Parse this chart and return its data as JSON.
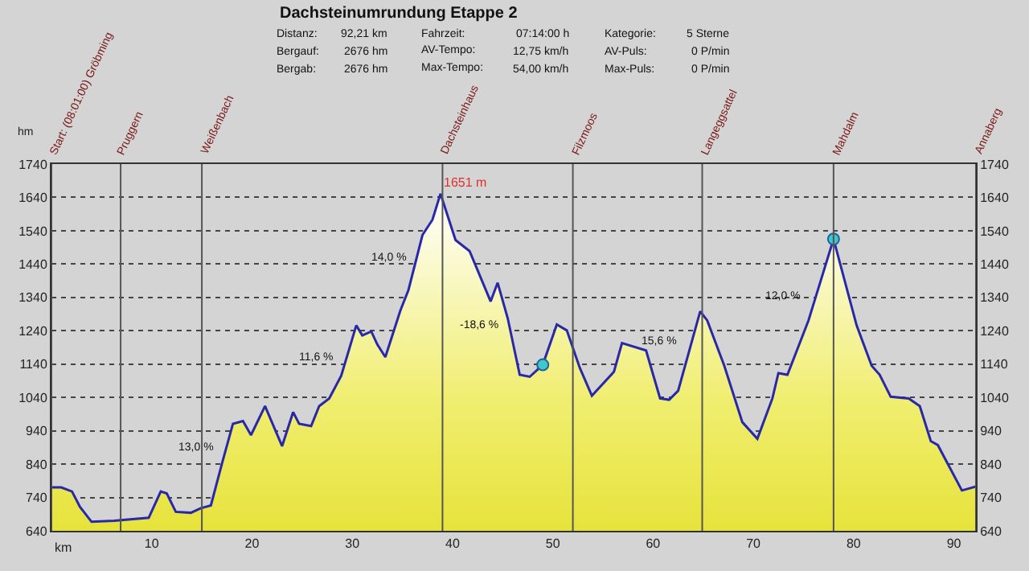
{
  "chart_data": {
    "type": "area",
    "title": "Dachsteinumrundung Etappe 2",
    "xlabel": "km",
    "ylabel": "hm",
    "xlim": [
      0,
      92.2
    ],
    "xticks": [
      10,
      20,
      30,
      40,
      50,
      60,
      70,
      80,
      90
    ],
    "ylim": [
      640,
      1740
    ],
    "yticks": [
      640,
      740,
      840,
      940,
      1040,
      1140,
      1240,
      1340,
      1440,
      1540,
      1640,
      1740
    ],
    "y2lim": [
      640,
      1740
    ],
    "y2ticks": [
      640,
      740,
      840,
      940,
      1040,
      1140,
      1240,
      1340,
      1440,
      1540,
      1640,
      1740
    ],
    "grid": "y",
    "series": [
      {
        "color": "#2828a8",
        "x": [
          0,
          0.98,
          2.05,
          2.84,
          4.0,
          6.26,
          9.7,
          10.9,
          11.5,
          12.4,
          13.9,
          14.9,
          15.9,
          17.0,
          18.1,
          19.1,
          19.9,
          21.3,
          23.0,
          24.1,
          24.7,
          25.9,
          26.7,
          27.7,
          28.9,
          30.4,
          31.0,
          31.9,
          32.5,
          33.3,
          34.8,
          35.6,
          37.0,
          38.0,
          38.8,
          40.3,
          41.7,
          43.8,
          44.5,
          45.5,
          46.7,
          47.7,
          49.0,
          50.4,
          51.4,
          52.7,
          53.9,
          56.1,
          56.9,
          59.3,
          60.7,
          61.6,
          62.5,
          64.7,
          65.4,
          67.1,
          68.9,
          70.4,
          71.9,
          72.5,
          73.4,
          75.5,
          78.0,
          80.3,
          81.8,
          82.6,
          83.7,
          85.5,
          86.6,
          87.7,
          88.4,
          90.8,
          92.2
        ],
        "values": [
          770,
          770,
          758,
          712,
          667,
          670,
          679,
          758,
          752,
          697,
          694,
          708,
          716,
          841,
          961,
          969,
          927,
          1014,
          894,
          996,
          961,
          954,
          1014,
          1037,
          1105,
          1256,
          1226,
          1238,
          1199,
          1161,
          1301,
          1362,
          1527,
          1573,
          1651,
          1512,
          1479,
          1328,
          1384,
          1278,
          1108,
          1102,
          1138,
          1259,
          1241,
          1128,
          1045,
          1117,
          1203,
          1181,
          1037,
          1033,
          1060,
          1298,
          1271,
          1135,
          966,
          916,
          1037,
          1113,
          1108,
          1271,
          1515,
          1256,
          1135,
          1108,
          1042,
          1037,
          1014,
          909,
          897,
          761,
          773
        ]
      },
      {
        "type": "scatter",
        "color": "#40c8c8",
        "marker": "circle",
        "x": [
          49.0,
          78.0
        ],
        "values": [
          1138,
          1515
        ]
      }
    ],
    "ref_lines": [
      {
        "axis": "x",
        "value": 0,
        "label": "Start: (08:01:00) Gröbming"
      },
      {
        "axis": "x",
        "value": 6.9,
        "label": "Pruggern"
      },
      {
        "axis": "x",
        "value": 15.0,
        "label": "Weißenbach"
      },
      {
        "axis": "x",
        "value": 39.0,
        "label": "Dachsteinhaus"
      },
      {
        "axis": "x",
        "value": 52.0,
        "label": "Filzmoos"
      },
      {
        "axis": "x",
        "value": 64.9,
        "label": "Langeggsattel"
      },
      {
        "axis": "x",
        "value": 78.0,
        "label": "Mahdalm"
      },
      {
        "axis": "x",
        "value": 92.2,
        "label": "Annaberg"
      }
    ],
    "annotations": [
      "Distanz:",
      "92,21 km",
      "Fahrzeit:",
      "07:14:00 h",
      "Kategorie:",
      "5 Sterne",
      "Bergauf:",
      "2676 hm",
      "AV-Tempo:",
      "12,75 km/h",
      "AV-Puls:",
      "0 P/min",
      "Bergab:",
      "2676 hm",
      "Max-Tempo:",
      "54,00 km/h",
      "Max-Puls:",
      "0 P/min",
      {
        "text": "1651 m",
        "x": 38.8,
        "y": 1651
      },
      {
        "text": "13,0 %",
        "x": 17.0,
        "y": 887
      },
      {
        "text": "11,6 %",
        "x": 28.8,
        "y": 1159
      },
      {
        "text": "14,0 %",
        "x": 36.2,
        "y": 1458
      },
      {
        "text": "-18,6 %",
        "x": 45.4,
        "y": 1254
      },
      {
        "text": "15,6 %",
        "x": 63.2,
        "y": 1209
      },
      {
        "text": "12,0 %",
        "x": 75.6,
        "y": 1340
      }
    ]
  }
}
